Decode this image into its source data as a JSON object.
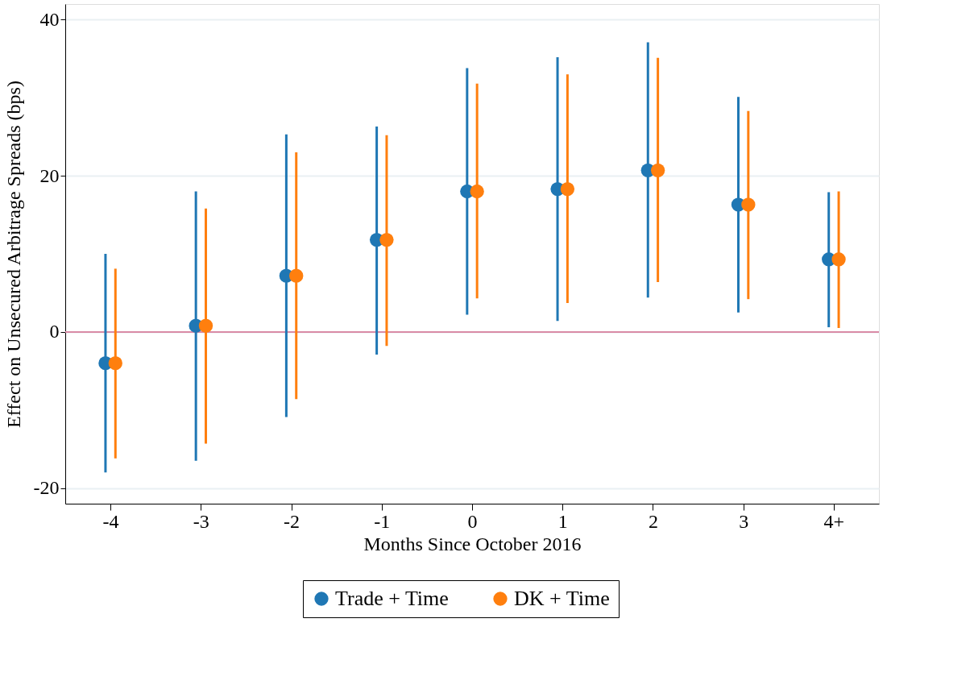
{
  "chart_data": {
    "type": "scatter",
    "xlabel": "Months Since October 2016",
    "ylabel": "Effect on Unsecured Arbitrage Spreads (bps)",
    "categories": [
      "-4",
      "-3",
      "-2",
      "-1",
      "0",
      "1",
      "2",
      "3",
      "4+"
    ],
    "series": [
      {
        "name": "Trade + Time",
        "color": "#1f77b4",
        "values": [
          -4.0,
          0.8,
          7.2,
          11.8,
          18.0,
          18.3,
          20.7,
          16.3,
          9.3
        ],
        "errors": [
          [
            -18.0,
            10.0
          ],
          [
            -16.5,
            18.0
          ],
          [
            -10.9,
            25.3
          ],
          [
            -2.9,
            26.3
          ],
          [
            2.2,
            33.8
          ],
          [
            1.4,
            35.2
          ],
          [
            4.4,
            37.1
          ],
          [
            2.5,
            30.1
          ],
          [
            0.6,
            17.9
          ]
        ]
      },
      {
        "name": "DK + Time",
        "color": "#ff7f0e",
        "values": [
          -4.0,
          0.8,
          7.2,
          11.8,
          18.0,
          18.3,
          20.7,
          16.3,
          9.3
        ],
        "errors": [
          [
            -16.2,
            8.1
          ],
          [
            -14.3,
            15.8
          ],
          [
            -8.6,
            23.0
          ],
          [
            -1.8,
            25.2
          ],
          [
            4.3,
            31.8
          ],
          [
            3.7,
            33.0
          ],
          [
            6.4,
            35.1
          ],
          [
            4.2,
            28.3
          ],
          [
            0.5,
            18.0
          ]
        ]
      }
    ],
    "ylim": [
      -22,
      42
    ],
    "yticks": [
      -20,
      0,
      20,
      40
    ],
    "grid": "y",
    "legend": "bottom",
    "marker": "circle",
    "ref_lines": [
      {
        "axis": "y",
        "value": 0,
        "color": "#d98ba6"
      }
    ]
  }
}
